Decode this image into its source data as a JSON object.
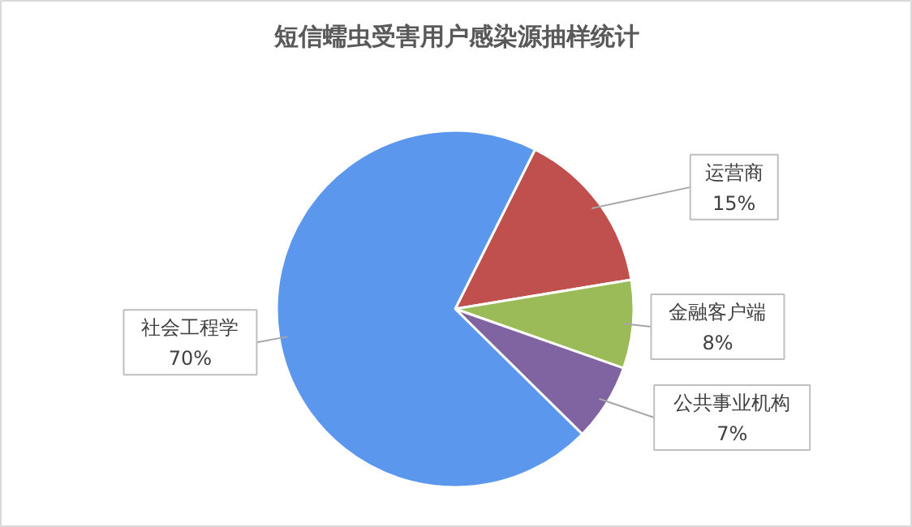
{
  "chart_data": {
    "type": "pie",
    "title": "短信蠕虫受害用户感染源抽样统计",
    "categories": [
      "运营商",
      "金融客户端",
      "公共事业机构",
      "社会工程学"
    ],
    "values": [
      15,
      8,
      7,
      70
    ],
    "colors": [
      "#c0504d",
      "#9bbb59",
      "#8064a2",
      "#5b97ec"
    ],
    "value_labels": [
      "15%",
      "8%",
      "7%",
      "70%"
    ]
  }
}
